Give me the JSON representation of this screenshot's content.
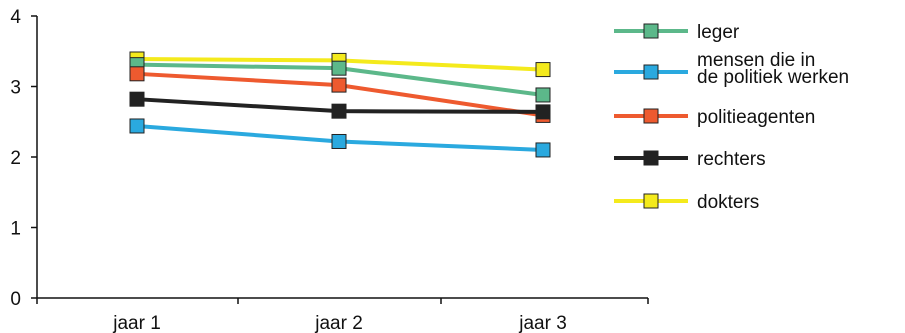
{
  "chart_data": {
    "type": "line",
    "title": "",
    "xlabel": "",
    "ylabel": "",
    "categories": [
      "jaar 1",
      "jaar 2",
      "jaar 3"
    ],
    "ylim": [
      0,
      4
    ],
    "yticks": [
      0,
      1,
      2,
      3,
      4
    ],
    "grid": false,
    "legend_position": "right",
    "series": [
      {
        "name": "leger",
        "color": "#5cb88a",
        "values": [
          3.31,
          3.26,
          2.88
        ]
      },
      {
        "name": "mensen die in de politiek werken",
        "name_lines": [
          "mensen die in",
          "de politiek werken"
        ],
        "color": "#2aa9df",
        "values": [
          2.44,
          2.22,
          2.1
        ]
      },
      {
        "name": "politieagenten",
        "color": "#ee5a2f",
        "values": [
          3.18,
          3.02,
          2.59
        ]
      },
      {
        "name": "rechters",
        "color": "#222222",
        "values": [
          2.82,
          2.65,
          2.64
        ]
      },
      {
        "name": "dokters",
        "color": "#f4ea1c",
        "values": [
          3.39,
          3.37,
          3.24
        ]
      }
    ],
    "draw_order": [
      4,
      0,
      2,
      1,
      3
    ]
  }
}
